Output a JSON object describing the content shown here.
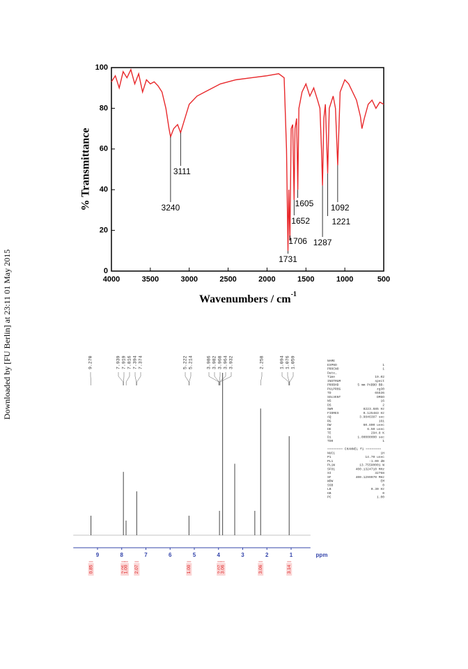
{
  "side_note": "Downloaded by [FU Berlin] at 23:11 01 May 2015",
  "chart_data": [
    {
      "type": "line",
      "ylabel": "% Transmittance",
      "xlabel": {
        "text": "Wavenumbers / cm",
        "superscript": "-1"
      },
      "xlim": [
        4000,
        500
      ],
      "ylim": [
        0,
        100
      ],
      "xticks": [
        4000,
        3500,
        3000,
        2500,
        2000,
        1500,
        1000,
        500
      ],
      "yticks": [
        0,
        20,
        40,
        60,
        80,
        100
      ],
      "series": [
        {
          "color": "#e8282b",
          "x": [
            4000,
            3950,
            3900,
            3850,
            3800,
            3750,
            3700,
            3650,
            3600,
            3550,
            3500,
            3450,
            3400,
            3350,
            3300,
            3260,
            3240,
            3200,
            3150,
            3111,
            3080,
            3000,
            2900,
            2800,
            2600,
            2400,
            2200,
            2000,
            1850,
            1780,
            1750,
            1731,
            1720,
            1706,
            1690,
            1670,
            1652,
            1640,
            1620,
            1605,
            1590,
            1550,
            1500,
            1450,
            1400,
            1350,
            1320,
            1300,
            1287,
            1270,
            1250,
            1221,
            1200,
            1150,
            1120,
            1092,
            1060,
            1000,
            950,
            900,
            850,
            800,
            780,
            750,
            700,
            650,
            600,
            550,
            500
          ],
          "values": [
            93,
            96,
            90,
            98,
            95,
            99,
            92,
            97,
            88,
            94,
            92,
            93,
            91,
            88,
            80,
            70,
            66,
            70,
            72,
            68,
            72,
            82,
            86,
            88,
            92,
            94,
            95,
            96,
            97,
            95,
            60,
            10,
            40,
            15,
            70,
            72,
            35,
            70,
            75,
            40,
            80,
            88,
            92,
            86,
            90,
            84,
            80,
            60,
            42,
            75,
            82,
            48,
            80,
            86,
            80,
            52,
            88,
            94,
            92,
            88,
            84,
            76,
            70,
            75,
            82,
            84,
            80,
            83,
            82
          ]
        }
      ],
      "annotations": [
        3240,
        3111,
        1731,
        1706,
        1652,
        1605,
        1287,
        1221,
        1092
      ]
    },
    {
      "type": "spectrum",
      "xlim": [
        10,
        0.2
      ],
      "ylim": [
        0,
        100
      ],
      "xticks": [
        9,
        8,
        7,
        6,
        5,
        4,
        3,
        2,
        1
      ],
      "xunit": "ppm",
      "color": "#444444",
      "peaks": {
        "ppm": [
          9.27,
          7.93,
          7.82,
          7.38,
          5.22,
          3.96,
          3.83,
          3.33,
          2.5,
          2.26,
          1.08
        ],
        "heights": [
          12,
          39,
          9,
          27,
          12,
          15,
          100,
          44,
          15,
          78,
          61
        ]
      },
      "peak_labels": [
        {
          "value": 9.27,
          "label": "9.270"
        },
        {
          "value": 7.939,
          "label": "7.939"
        },
        {
          "value": 7.919,
          "label": "7.919"
        },
        {
          "value": 7.816,
          "label": "7.816"
        },
        {
          "value": 7.394,
          "label": "7.394"
        },
        {
          "value": 7.374,
          "label": "7.374"
        },
        {
          "value": 5.222,
          "label": "5.222"
        },
        {
          "value": 5.214,
          "label": "5.214"
        },
        {
          "value": 3.986,
          "label": "3.986"
        },
        {
          "value": 3.982,
          "label": "3.982"
        },
        {
          "value": 3.968,
          "label": "3.968"
        },
        {
          "value": 3.964,
          "label": "3.964"
        },
        {
          "value": 3.932,
          "label": "3.932"
        },
        {
          "value": 2.258,
          "label": "2.258"
        },
        {
          "value": 1.094,
          "label": "1.094"
        },
        {
          "value": 1.076,
          "label": "1.076"
        },
        {
          "value": 1.059,
          "label": "1.059"
        }
      ],
      "integrals": [
        {
          "label": "0.85",
          "ppm": 9.27
        },
        {
          "label": "2.05",
          "ppm": 7.93
        },
        {
          "label": "1.00",
          "ppm": 7.82
        },
        {
          "label": "2.07",
          "ppm": 7.38
        },
        {
          "label": "1.00",
          "ppm": 5.22
        },
        {
          "label": "2.07",
          "ppm": 3.96
        },
        {
          "label": "3.06",
          "ppm": 3.83
        },
        {
          "label": "3.06",
          "ppm": 2.26
        },
        {
          "label": "3.14",
          "ppm": 1.08
        }
      ],
      "parameters": [
        [
          "NAME",
          ""
        ],
        [
          "EXPNO",
          "1"
        ],
        [
          "PROCNO",
          "1"
        ],
        [
          "Date_",
          ""
        ],
        [
          "Time",
          "19.02"
        ],
        [
          "INSTRUM",
          "spect"
        ],
        [
          "PROBHD",
          "5 mm PABBO BB-"
        ],
        [
          "PULPROG",
          "zg30"
        ],
        [
          "TD",
          "65536"
        ],
        [
          "SOLVENT",
          "DMSO"
        ],
        [
          "NS",
          "16"
        ],
        [
          "DS",
          "2"
        ],
        [
          "SWH",
          "8223.685 Hz"
        ],
        [
          "FIDRES",
          "0.125483 Hz"
        ],
        [
          "AQ",
          "3.9846387 sec"
        ],
        [
          "RG",
          "161"
        ],
        [
          "DW",
          "60.800 usec"
        ],
        [
          "DE",
          "6.50 usec"
        ],
        [
          "TE",
          "294.8 K"
        ],
        [
          "D1",
          "1.00000000 sec"
        ],
        [
          "TD0",
          "1"
        ],
        [
          "",
          ""
        ],
        [
          "======== CHANNEL f1 ========",
          ""
        ],
        [
          "NUC1",
          "1H"
        ],
        [
          "P1",
          "14.70 usec"
        ],
        [
          "PL1",
          "-1.00 dB"
        ],
        [
          "PL1W",
          "13.75590001 W"
        ],
        [
          "SFO1",
          "400.1324710 MHz"
        ],
        [
          "SI",
          "32768"
        ],
        [
          "SF",
          "400.1299970 MHz"
        ],
        [
          "WDW",
          "EM"
        ],
        [
          "SSB",
          "0"
        ],
        [
          "LB",
          "0.30 Hz"
        ],
        [
          "GB",
          "0"
        ],
        [
          "PC",
          "1.00"
        ]
      ]
    }
  ]
}
